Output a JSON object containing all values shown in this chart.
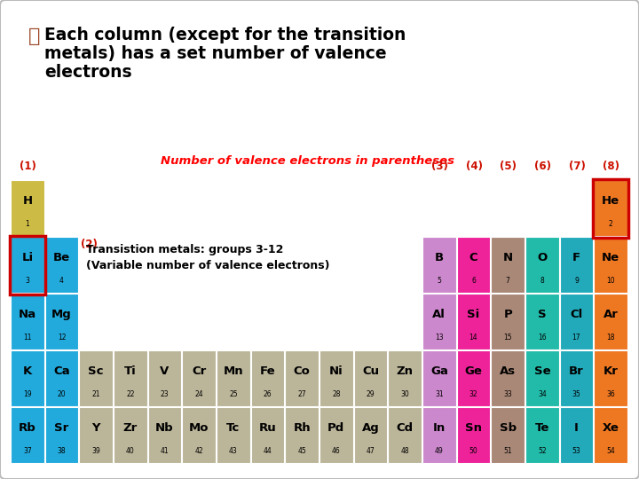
{
  "bg_color": "#ffffff",
  "table_title": "Number of valence electrons in parentheses",
  "transition_label1": "Transistion metals: groups 3-12",
  "transition_label2": "(Variable number of valence electrons)",
  "elements": [
    {
      "sym": "H",
      "num": 1,
      "row": 0,
      "col": 0,
      "color": "#ccbb44"
    },
    {
      "sym": "He",
      "num": 2,
      "row": 0,
      "col": 17,
      "color": "#ee7722",
      "outline": "#cc0000"
    },
    {
      "sym": "Li",
      "num": 3,
      "row": 1,
      "col": 0,
      "color": "#22aadd",
      "outline": "#cc0000"
    },
    {
      "sym": "Be",
      "num": 4,
      "row": 1,
      "col": 1,
      "color": "#22aadd"
    },
    {
      "sym": "B",
      "num": 5,
      "row": 1,
      "col": 12,
      "color": "#cc88cc"
    },
    {
      "sym": "C",
      "num": 6,
      "row": 1,
      "col": 13,
      "color": "#ee2299"
    },
    {
      "sym": "N",
      "num": 7,
      "row": 1,
      "col": 14,
      "color": "#aa8877"
    },
    {
      "sym": "O",
      "num": 8,
      "row": 1,
      "col": 15,
      "color": "#22bbaa"
    },
    {
      "sym": "F",
      "num": 9,
      "row": 1,
      "col": 16,
      "color": "#22aabb"
    },
    {
      "sym": "Ne",
      "num": 10,
      "row": 1,
      "col": 17,
      "color": "#ee7722"
    },
    {
      "sym": "Na",
      "num": 11,
      "row": 2,
      "col": 0,
      "color": "#22aadd"
    },
    {
      "sym": "Mg",
      "num": 12,
      "row": 2,
      "col": 1,
      "color": "#22aadd"
    },
    {
      "sym": "Al",
      "num": 13,
      "row": 2,
      "col": 12,
      "color": "#cc88cc"
    },
    {
      "sym": "Si",
      "num": 14,
      "row": 2,
      "col": 13,
      "color": "#ee2299"
    },
    {
      "sym": "P",
      "num": 15,
      "row": 2,
      "col": 14,
      "color": "#aa8877"
    },
    {
      "sym": "S",
      "num": 16,
      "row": 2,
      "col": 15,
      "color": "#22bbaa"
    },
    {
      "sym": "Cl",
      "num": 17,
      "row": 2,
      "col": 16,
      "color": "#22aabb"
    },
    {
      "sym": "Ar",
      "num": 18,
      "row": 2,
      "col": 17,
      "color": "#ee7722"
    },
    {
      "sym": "K",
      "num": 19,
      "row": 3,
      "col": 0,
      "color": "#22aadd"
    },
    {
      "sym": "Ca",
      "num": 20,
      "row": 3,
      "col": 1,
      "color": "#22aadd"
    },
    {
      "sym": "Sc",
      "num": 21,
      "row": 3,
      "col": 2,
      "color": "#bbb599"
    },
    {
      "sym": "Ti",
      "num": 22,
      "row": 3,
      "col": 3,
      "color": "#bbb599"
    },
    {
      "sym": "V",
      "num": 23,
      "row": 3,
      "col": 4,
      "color": "#bbb599"
    },
    {
      "sym": "Cr",
      "num": 24,
      "row": 3,
      "col": 5,
      "color": "#bbb599"
    },
    {
      "sym": "Mn",
      "num": 25,
      "row": 3,
      "col": 6,
      "color": "#bbb599"
    },
    {
      "sym": "Fe",
      "num": 26,
      "row": 3,
      "col": 7,
      "color": "#bbb599"
    },
    {
      "sym": "Co",
      "num": 27,
      "row": 3,
      "col": 8,
      "color": "#bbb599"
    },
    {
      "sym": "Ni",
      "num": 28,
      "row": 3,
      "col": 9,
      "color": "#bbb599"
    },
    {
      "sym": "Cu",
      "num": 29,
      "row": 3,
      "col": 10,
      "color": "#bbb599"
    },
    {
      "sym": "Zn",
      "num": 30,
      "row": 3,
      "col": 11,
      "color": "#bbb599"
    },
    {
      "sym": "Ga",
      "num": 31,
      "row": 3,
      "col": 12,
      "color": "#cc88cc"
    },
    {
      "sym": "Ge",
      "num": 32,
      "row": 3,
      "col": 13,
      "color": "#ee2299"
    },
    {
      "sym": "As",
      "num": 33,
      "row": 3,
      "col": 14,
      "color": "#aa8877"
    },
    {
      "sym": "Se",
      "num": 34,
      "row": 3,
      "col": 15,
      "color": "#22bbaa"
    },
    {
      "sym": "Br",
      "num": 35,
      "row": 3,
      "col": 16,
      "color": "#22aabb"
    },
    {
      "sym": "Kr",
      "num": 36,
      "row": 3,
      "col": 17,
      "color": "#ee7722"
    },
    {
      "sym": "Rb",
      "num": 37,
      "row": 4,
      "col": 0,
      "color": "#22aadd"
    },
    {
      "sym": "Sr",
      "num": 38,
      "row": 4,
      "col": 1,
      "color": "#22aadd"
    },
    {
      "sym": "Y",
      "num": 39,
      "row": 4,
      "col": 2,
      "color": "#bbb599"
    },
    {
      "sym": "Zr",
      "num": 40,
      "row": 4,
      "col": 3,
      "color": "#bbb599"
    },
    {
      "sym": "Nb",
      "num": 41,
      "row": 4,
      "col": 4,
      "color": "#bbb599"
    },
    {
      "sym": "Mo",
      "num": 42,
      "row": 4,
      "col": 5,
      "color": "#bbb599"
    },
    {
      "sym": "Tc",
      "num": 43,
      "row": 4,
      "col": 6,
      "color": "#bbb599"
    },
    {
      "sym": "Ru",
      "num": 44,
      "row": 4,
      "col": 7,
      "color": "#bbb599"
    },
    {
      "sym": "Rh",
      "num": 45,
      "row": 4,
      "col": 8,
      "color": "#bbb599"
    },
    {
      "sym": "Pd",
      "num": 46,
      "row": 4,
      "col": 9,
      "color": "#bbb599"
    },
    {
      "sym": "Ag",
      "num": 47,
      "row": 4,
      "col": 10,
      "color": "#bbb599"
    },
    {
      "sym": "Cd",
      "num": 48,
      "row": 4,
      "col": 11,
      "color": "#bbb599"
    },
    {
      "sym": "In",
      "num": 49,
      "row": 4,
      "col": 12,
      "color": "#cc88cc"
    },
    {
      "sym": "Sn",
      "num": 50,
      "row": 4,
      "col": 13,
      "color": "#ee2299"
    },
    {
      "sym": "Sb",
      "num": 51,
      "row": 4,
      "col": 14,
      "color": "#aa8877"
    },
    {
      "sym": "Te",
      "num": 52,
      "row": 4,
      "col": 15,
      "color": "#22bbaa"
    },
    {
      "sym": "I",
      "num": 53,
      "row": 4,
      "col": 16,
      "color": "#22aabb"
    },
    {
      "sym": "Xe",
      "num": 54,
      "row": 4,
      "col": 17,
      "color": "#ee7722"
    }
  ]
}
